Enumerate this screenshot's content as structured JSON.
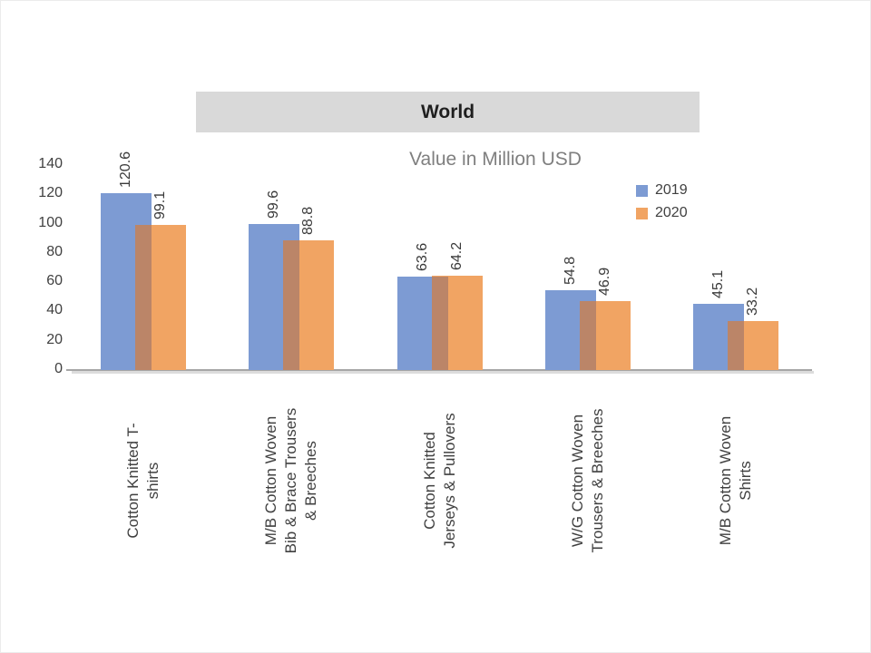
{
  "slide": {
    "title": "World",
    "subtitle": "Value in Million USD"
  },
  "chart_data": {
    "type": "bar",
    "title": "World",
    "subtitle": "Value in Million USD",
    "categories": [
      "Cotton Knitted  T-\nshirts",
      "M/B Cotton Woven\nBib & Brace Trousers\n& Breeches",
      "Cotton Knitted\nJerseys & Pullovers",
      "W/G Cotton Woven\nTrousers  & Breeches",
      "M/B Cotton Woven\nShirts"
    ],
    "series": [
      {
        "name": "2019",
        "color": "#7d9bd3",
        "values": [
          120.6,
          99.6,
          63.6,
          54.8,
          45.1
        ]
      },
      {
        "name": "2020",
        "color": "#f1a463",
        "values": [
          99.1,
          88.8,
          64.2,
          46.9,
          33.2
        ]
      }
    ],
    "overlap_color": "#bb8568",
    "ylim": [
      0,
      140
    ],
    "yticks": [
      0,
      20,
      40,
      60,
      80,
      100,
      120,
      140
    ],
    "ylabel": "",
    "xlabel": "",
    "grid": false,
    "legend_position": "top-right",
    "value_labels": true,
    "label_rotation": "vertical"
  }
}
